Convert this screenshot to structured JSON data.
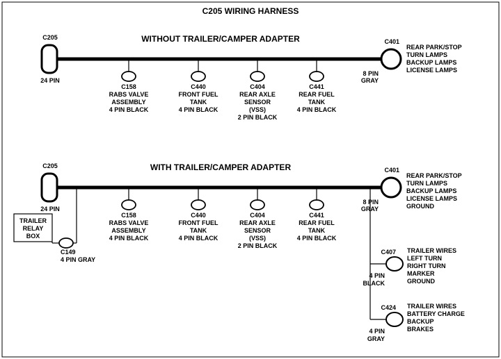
{
  "title": "C205 WIRING HARNESS",
  "diagrams": [
    {
      "heading": "WITHOUT  TRAILER/CAMPER  ADAPTER",
      "left_conn": {
        "id": "C205",
        "pins": "24 PIN"
      },
      "right_conn": {
        "id": "C401",
        "pins": "8 PIN",
        "color": "GRAY",
        "notes": [
          "REAR PARK/STOP",
          "TURN LAMPS",
          "BACKUP LAMPS",
          "LICENSE LAMPS"
        ]
      },
      "drops": [
        {
          "id": "C158",
          "lines": [
            "RABS VALVE",
            "ASSEMBLY",
            "4 PIN BLACK"
          ]
        },
        {
          "id": "C440",
          "lines": [
            "FRONT FUEL",
            "TANK",
            "4 PIN BLACK"
          ]
        },
        {
          "id": "C404",
          "lines": [
            "REAR AXLE",
            "SENSOR",
            "(VSS)",
            "2 PIN BLACK"
          ]
        },
        {
          "id": "C441",
          "lines": [
            "REAR FUEL",
            "TANK",
            "4 PIN BLACK"
          ]
        }
      ]
    },
    {
      "heading": "WITH TRAILER/CAMPER  ADAPTER",
      "left_conn": {
        "id": "C205",
        "pins": "24 PIN"
      },
      "right_conn": {
        "id": "C401",
        "pins": "8 PIN",
        "color": "GRAY",
        "notes": [
          "REAR PARK/STOP",
          "TURN LAMPS",
          "BACKUP LAMPS",
          "LICENSE LAMPS",
          "GROUND"
        ]
      },
      "drops": [
        {
          "id": "C158",
          "lines": [
            "RABS VALVE",
            "ASSEMBLY",
            "4 PIN BLACK"
          ]
        },
        {
          "id": "C440",
          "lines": [
            "FRONT FUEL",
            "TANK",
            "4 PIN BLACK"
          ]
        },
        {
          "id": "C404",
          "lines": [
            "REAR AXLE",
            "SENSOR",
            "(VSS)",
            "2 PIN BLACK"
          ]
        },
        {
          "id": "C441",
          "lines": [
            "REAR FUEL",
            "TANK",
            "4 PIN BLACK"
          ]
        }
      ],
      "left_extra": {
        "id": "C149",
        "pins": "4 PIN GRAY",
        "box": [
          "TRAILER",
          "RELAY",
          "BOX"
        ]
      },
      "right_extras": [
        {
          "id": "C407",
          "pins": "4 PIN",
          "color": "BLACK",
          "notes": [
            "TRAILER WIRES",
            " LEFT TURN",
            "RIGHT TURN",
            "MARKER",
            "GROUND"
          ]
        },
        {
          "id": "C424",
          "pins": "4 PIN",
          "color": "GRAY",
          "notes": [
            "TRAILER  WIRES",
            "BATTERY CHARGE",
            "BACKUP",
            "BRAKES"
          ]
        }
      ]
    }
  ],
  "style": {
    "bg": "#ffffff",
    "stroke": "#000000",
    "title_fs": 12,
    "heading_fs": 12,
    "label_fs": 9,
    "bus_width": 5,
    "wire_width": 1.2,
    "conn_stroke": 3
  }
}
